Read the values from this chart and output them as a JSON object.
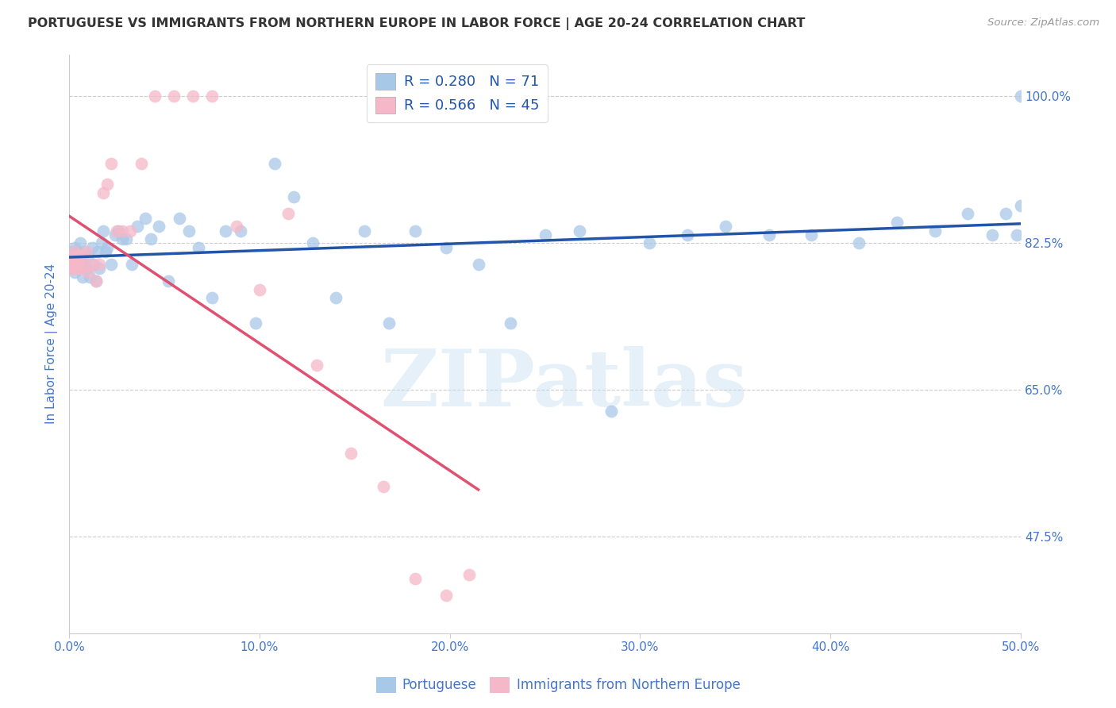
{
  "title": "PORTUGUESE VS IMMIGRANTS FROM NORTHERN EUROPE IN LABOR FORCE | AGE 20-24 CORRELATION CHART",
  "source": "Source: ZipAtlas.com",
  "xlabel_ticks": [
    "0.0%",
    "10.0%",
    "20.0%",
    "30.0%",
    "40.0%",
    "50.0%"
  ],
  "xlabel_vals": [
    0.0,
    0.1,
    0.2,
    0.3,
    0.4,
    0.5
  ],
  "ylabel_label": "In Labor Force | Age 20-24",
  "ylabel_ticks": [
    "100.0%",
    "82.5%",
    "65.0%",
    "47.5%"
  ],
  "ylabel_vals": [
    1.0,
    0.825,
    0.65,
    0.475
  ],
  "xlim": [
    0.0,
    0.5
  ],
  "ylim": [
    0.36,
    1.05
  ],
  "blue_r": 0.28,
  "blue_n": 71,
  "pink_r": 0.566,
  "pink_n": 45,
  "blue_color": "#a8c8e8",
  "pink_color": "#f5b8c8",
  "blue_line_color": "#2255aa",
  "pink_line_color": "#e05070",
  "legend_label_blue": "Portuguese",
  "legend_label_pink": "Immigrants from Northern Europe",
  "blue_points_x": [
    0.001,
    0.002,
    0.002,
    0.003,
    0.003,
    0.004,
    0.004,
    0.005,
    0.005,
    0.006,
    0.006,
    0.007,
    0.008,
    0.008,
    0.009,
    0.01,
    0.011,
    0.012,
    0.013,
    0.014,
    0.015,
    0.016,
    0.017,
    0.018,
    0.019,
    0.02,
    0.022,
    0.024,
    0.026,
    0.028,
    0.03,
    0.033,
    0.036,
    0.04,
    0.043,
    0.047,
    0.052,
    0.058,
    0.063,
    0.068,
    0.075,
    0.082,
    0.09,
    0.098,
    0.108,
    0.118,
    0.128,
    0.14,
    0.155,
    0.168,
    0.182,
    0.198,
    0.215,
    0.232,
    0.25,
    0.268,
    0.285,
    0.305,
    0.325,
    0.345,
    0.368,
    0.39,
    0.415,
    0.435,
    0.455,
    0.472,
    0.485,
    0.492,
    0.498,
    0.5,
    0.5
  ],
  "blue_points_y": [
    0.805,
    0.81,
    0.815,
    0.79,
    0.82,
    0.8,
    0.815,
    0.795,
    0.81,
    0.8,
    0.825,
    0.785,
    0.8,
    0.815,
    0.795,
    0.81,
    0.785,
    0.82,
    0.8,
    0.78,
    0.815,
    0.795,
    0.825,
    0.84,
    0.815,
    0.82,
    0.8,
    0.835,
    0.84,
    0.83,
    0.83,
    0.8,
    0.845,
    0.855,
    0.83,
    0.845,
    0.78,
    0.855,
    0.84,
    0.82,
    0.76,
    0.84,
    0.84,
    0.73,
    0.92,
    0.88,
    0.825,
    0.76,
    0.84,
    0.73,
    0.84,
    0.82,
    0.8,
    0.73,
    0.835,
    0.84,
    0.625,
    0.825,
    0.835,
    0.845,
    0.835,
    0.835,
    0.825,
    0.85,
    0.84,
    0.86,
    0.835,
    0.86,
    0.835,
    0.87,
    1.0
  ],
  "pink_points_x": [
    0.001,
    0.001,
    0.001,
    0.002,
    0.002,
    0.002,
    0.003,
    0.003,
    0.003,
    0.003,
    0.004,
    0.004,
    0.004,
    0.005,
    0.005,
    0.005,
    0.006,
    0.006,
    0.007,
    0.008,
    0.009,
    0.01,
    0.012,
    0.014,
    0.016,
    0.018,
    0.02,
    0.022,
    0.025,
    0.028,
    0.032,
    0.038,
    0.045,
    0.055,
    0.065,
    0.075,
    0.088,
    0.1,
    0.115,
    0.13,
    0.148,
    0.165,
    0.182,
    0.198,
    0.21
  ],
  "pink_points_y": [
    0.805,
    0.8,
    0.795,
    0.81,
    0.795,
    0.8,
    0.815,
    0.8,
    0.795,
    0.81,
    0.8,
    0.81,
    0.805,
    0.795,
    0.81,
    0.8,
    0.795,
    0.81,
    0.81,
    0.8,
    0.815,
    0.79,
    0.8,
    0.78,
    0.8,
    0.885,
    0.895,
    0.92,
    0.84,
    0.84,
    0.84,
    0.92,
    1.0,
    1.0,
    1.0,
    1.0,
    0.845,
    0.77,
    0.86,
    0.68,
    0.575,
    0.535,
    0.425,
    0.405,
    0.43
  ],
  "watermark_text": "ZIPatlas",
  "background_color": "#ffffff",
  "grid_color": "#cccccc"
}
